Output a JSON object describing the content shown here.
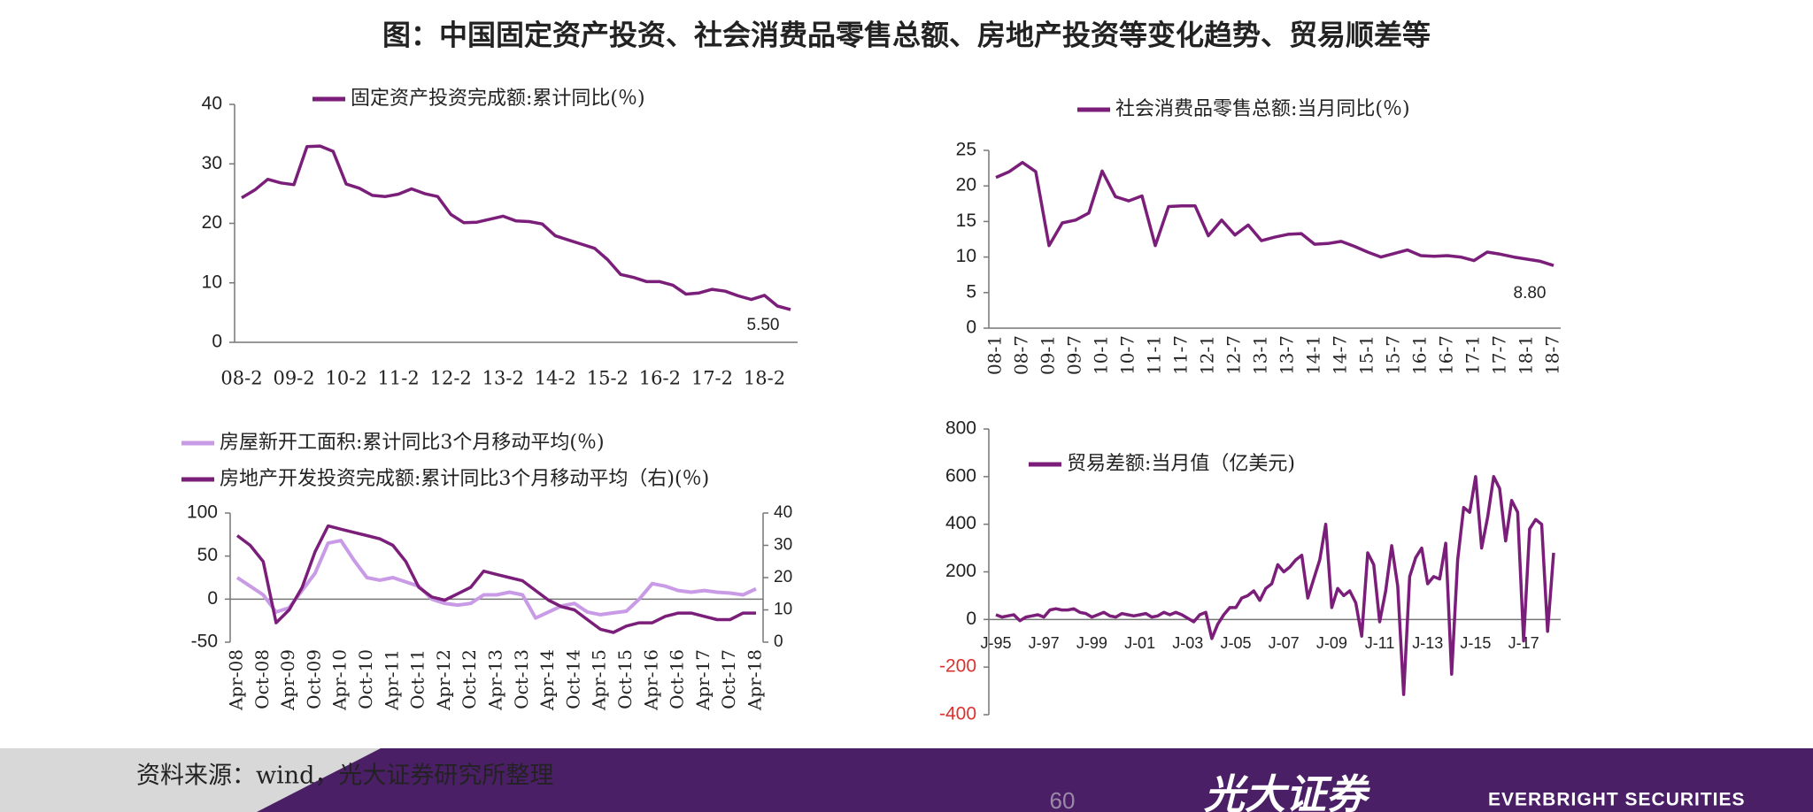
{
  "title": "图：中国固定资产投资、社会消费品零售总额、房地产投资等变化趋势、贸易顺差等",
  "footer": {
    "source": "资料来源：wind，光大证券研究所整理",
    "page": "60",
    "logo_cn": "光大证券",
    "logo_en": "EVERBRIGHT SECURITIES"
  },
  "chart_data": [
    {
      "type": "line",
      "annotation": "5.50",
      "categories": [
        "08-2",
        null,
        null,
        null,
        "09-2",
        null,
        null,
        null,
        "10-2",
        null,
        null,
        null,
        "11-2",
        null,
        null,
        null,
        "12-2",
        null,
        null,
        null,
        "13-2",
        null,
        null,
        null,
        "14-2",
        null,
        null,
        null,
        "15-2",
        null,
        null,
        null,
        "16-2",
        null,
        null,
        null,
        "17-2",
        null,
        null,
        null,
        "18-2",
        null,
        null
      ],
      "series": [
        {
          "name": "固定资产投资完成额:累计同比(％)",
          "color": "#7b1e7a",
          "values": [
            24.3,
            25.6,
            27.4,
            26.8,
            26.5,
            32.9,
            33.0,
            32.1,
            26.6,
            25.9,
            24.7,
            24.5,
            24.9,
            25.8,
            25.0,
            24.5,
            21.5,
            20.1,
            20.2,
            20.7,
            21.2,
            20.4,
            20.3,
            19.9,
            17.9,
            17.2,
            16.5,
            15.8,
            13.9,
            11.4,
            10.9,
            10.2,
            10.2,
            9.6,
            8.1,
            8.3,
            8.9,
            8.6,
            7.8,
            7.2,
            7.9,
            6.1,
            5.5
          ]
        }
      ],
      "ylim": [
        0,
        40
      ],
      "yticks": [
        0,
        10,
        20,
        30,
        40
      ]
    },
    {
      "type": "line",
      "annotation": "8.80",
      "x_label_rotation": -90,
      "categories": [
        "08-1",
        null,
        "08-7",
        null,
        "09-1",
        null,
        "09-7",
        null,
        "10-1",
        null,
        "10-7",
        null,
        "11-1",
        null,
        "11-7",
        null,
        "12-1",
        null,
        "12-7",
        null,
        "13-1",
        null,
        "13-7",
        null,
        "14-1",
        null,
        "14-7",
        null,
        "15-1",
        null,
        "15-7",
        null,
        "16-1",
        null,
        "16-7",
        null,
        "17-1",
        null,
        "17-7",
        null,
        "18-1",
        null,
        "18-7"
      ],
      "series": [
        {
          "name": "社会消费品零售总额:当月同比(％)",
          "color": "#7b1e7a",
          "values": [
            21.2,
            22.0,
            23.3,
            22.0,
            11.6,
            14.8,
            15.2,
            16.2,
            22.1,
            18.5,
            17.9,
            18.6,
            11.6,
            17.1,
            17.2,
            17.2,
            13.0,
            15.2,
            13.1,
            14.5,
            12.3,
            12.8,
            13.2,
            13.3,
            11.8,
            11.9,
            12.2,
            11.5,
            10.7,
            10.0,
            10.5,
            11.0,
            10.2,
            10.1,
            10.2,
            10.0,
            9.5,
            10.7,
            10.4,
            10.0,
            9.7,
            9.4,
            8.8
          ]
        }
      ],
      "ylim": [
        0,
        25
      ],
      "yticks": [
        0,
        5,
        10,
        15,
        20,
        25
      ]
    },
    {
      "type": "line",
      "x_label_rotation": -90,
      "categories": [
        "Apr-08",
        null,
        "Oct-08",
        null,
        "Apr-09",
        null,
        "Oct-09",
        null,
        "Apr-10",
        null,
        "Oct-10",
        null,
        "Apr-11",
        null,
        "Oct-11",
        null,
        "Apr-12",
        null,
        "Oct-12",
        null,
        "Apr-13",
        null,
        "Oct-13",
        null,
        "Apr-14",
        null,
        "Oct-14",
        null,
        "Apr-15",
        null,
        "Oct-15",
        null,
        "Apr-16",
        null,
        "Oct-16",
        null,
        "Apr-17",
        null,
        "Oct-17",
        null,
        "Apr-18"
      ],
      "series": [
        {
          "name": "房屋新开工面积:累计同比3个月移动平均(％)",
          "color": "#c99be6",
          "values": [
            25,
            15,
            5,
            -15,
            -10,
            10,
            30,
            65,
            68,
            45,
            25,
            22,
            25,
            20,
            15,
            0,
            -5,
            -7,
            -5,
            5,
            5,
            8,
            5,
            -22,
            -15,
            -8,
            -5,
            -15,
            -18,
            -16,
            -14,
            0,
            18,
            15,
            10,
            8,
            10,
            8,
            7,
            5,
            12
          ]
        },
        {
          "name": "房地产开发投资完成额:累计同比3个月移动平均（右)(％)",
          "color": "#7b1e7a",
          "axis": "y2",
          "values": [
            33,
            30,
            25,
            6,
            10,
            17,
            28,
            36,
            35,
            34,
            33,
            32,
            30,
            25,
            17,
            14,
            13,
            15,
            17,
            22,
            21,
            20,
            19,
            16,
            13,
            11,
            10,
            7,
            4,
            3,
            5,
            6,
            6,
            8,
            9,
            9,
            8,
            7,
            7,
            9,
            9
          ]
        }
      ],
      "ylim": [
        -50,
        100
      ],
      "yticks": [
        -50,
        0,
        50,
        100
      ],
      "y2lim": [
        0,
        40
      ],
      "y2ticks": [
        0,
        10,
        20,
        30,
        40
      ]
    },
    {
      "type": "line",
      "negative_tick_color": "#d9322f",
      "categories": [
        "J-95",
        null,
        null,
        null,
        null,
        null,
        null,
        null,
        "J-97",
        null,
        null,
        null,
        null,
        null,
        null,
        null,
        "J-99",
        null,
        null,
        null,
        null,
        null,
        null,
        null,
        "J-01",
        null,
        null,
        null,
        null,
        null,
        null,
        null,
        "J-03",
        null,
        null,
        null,
        null,
        null,
        null,
        null,
        "J-05",
        null,
        null,
        null,
        null,
        null,
        null,
        null,
        "J-07",
        null,
        null,
        null,
        null,
        null,
        null,
        null,
        "J-09",
        null,
        null,
        null,
        null,
        null,
        null,
        null,
        "J-11",
        null,
        null,
        null,
        null,
        null,
        null,
        null,
        "J-13",
        null,
        null,
        null,
        null,
        null,
        null,
        null,
        "J-15",
        null,
        null,
        null,
        null,
        null,
        null,
        null,
        "J-17",
        null,
        null,
        null,
        null,
        null
      ],
      "series": [
        {
          "name": "贸易差额:当月值（亿美元)",
          "color": "#7b1e7a",
          "values": [
            20,
            10,
            15,
            20,
            -5,
            10,
            15,
            20,
            10,
            40,
            45,
            40,
            40,
            45,
            30,
            25,
            10,
            20,
            30,
            15,
            10,
            25,
            20,
            15,
            20,
            25,
            10,
            15,
            30,
            20,
            30,
            20,
            5,
            -10,
            20,
            30,
            -80,
            -20,
            20,
            50,
            50,
            90,
            100,
            120,
            80,
            130,
            150,
            230,
            200,
            220,
            250,
            270,
            90,
            170,
            250,
            400,
            50,
            130,
            100,
            120,
            70,
            -70,
            280,
            230,
            -10,
            120,
            310,
            140,
            -315,
            180,
            260,
            300,
            150,
            180,
            170,
            320,
            -230,
            250,
            470,
            450,
            600,
            300,
            430,
            600,
            550,
            330,
            500,
            450,
            -90,
            380,
            420,
            400,
            -50,
            280
          ]
        }
      ],
      "ylim": [
        -400,
        800
      ],
      "yticks": [
        -400,
        -200,
        0,
        200,
        400,
        600,
        800
      ]
    }
  ]
}
